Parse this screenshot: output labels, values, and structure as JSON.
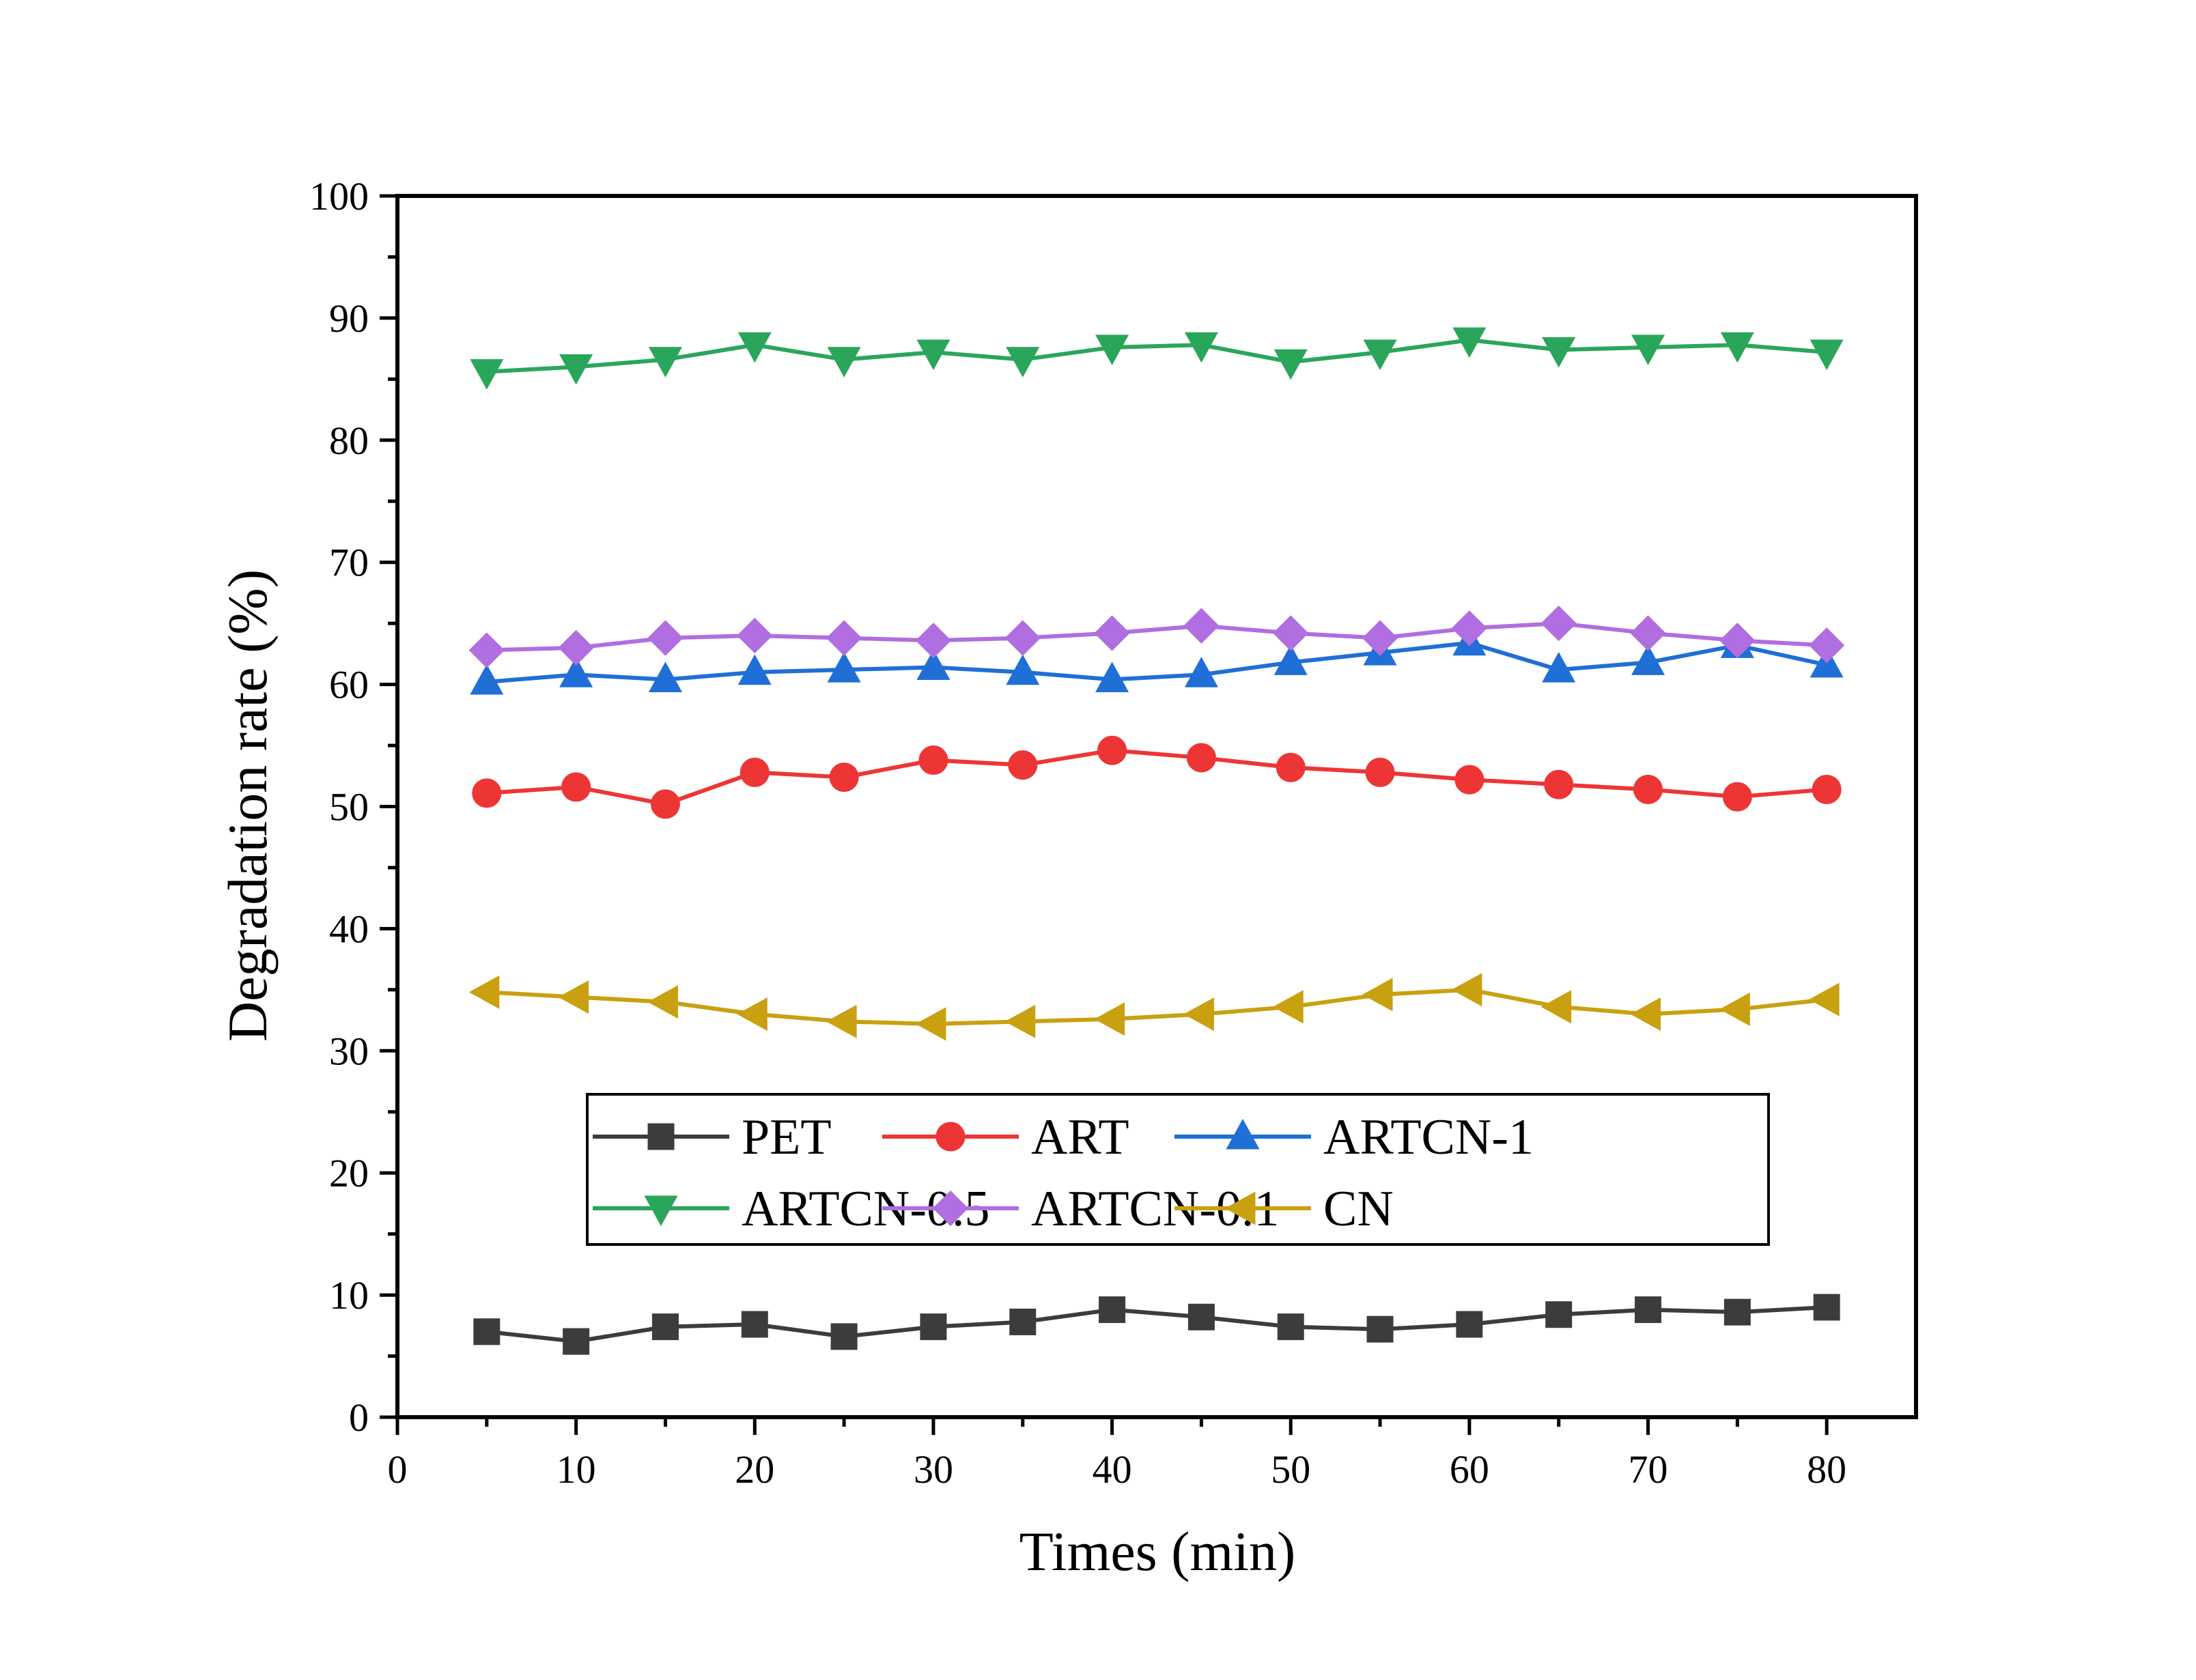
{
  "chart_data": {
    "type": "line",
    "title": "",
    "xlabel": "Times (min)",
    "ylabel": "Degradation rate (%)",
    "xlim": [
      0,
      85
    ],
    "ylim": [
      0,
      100
    ],
    "xticks": [
      0,
      10,
      20,
      30,
      40,
      50,
      60,
      70,
      80
    ],
    "yticks": [
      0,
      10,
      20,
      30,
      40,
      50,
      60,
      70,
      80,
      90,
      100
    ],
    "grid": false,
    "legend_position": "lower-middle",
    "x": [
      5,
      10,
      15,
      20,
      25,
      30,
      35,
      40,
      45,
      50,
      55,
      60,
      65,
      70,
      75,
      80
    ],
    "series": [
      {
        "name": "PET",
        "color": "#3c3c3c",
        "marker": "square",
        "values": [
          7.0,
          6.2,
          7.4,
          7.6,
          6.6,
          7.4,
          7.8,
          8.8,
          8.2,
          7.4,
          7.2,
          7.6,
          8.4,
          8.8,
          8.6,
          9.0
        ]
      },
      {
        "name": "ART",
        "color": "#ee3535",
        "marker": "circle",
        "values": [
          51.1,
          51.6,
          50.2,
          52.8,
          52.4,
          53.8,
          53.4,
          54.6,
          54.0,
          53.2,
          52.8,
          52.2,
          51.8,
          51.4,
          50.8,
          51.4
        ]
      },
      {
        "name": "ARTCN-1",
        "color": "#1f6fd6",
        "marker": "triangle-up",
        "values": [
          60.2,
          60.8,
          60.4,
          61.0,
          61.2,
          61.4,
          61.0,
          60.4,
          60.8,
          61.8,
          62.6,
          63.4,
          61.2,
          61.8,
          63.2,
          61.6
        ]
      },
      {
        "name": "ARTCN-0.5",
        "color": "#2aa65a",
        "marker": "triangle-down",
        "values": [
          85.6,
          86.0,
          86.6,
          87.8,
          86.6,
          87.2,
          86.6,
          87.6,
          87.8,
          86.4,
          87.2,
          88.2,
          87.4,
          87.6,
          87.8,
          87.2
        ]
      },
      {
        "name": "ARTCN-0.1",
        "color": "#b06ee0",
        "marker": "diamond",
        "values": [
          62.8,
          63.0,
          63.8,
          64.0,
          63.8,
          63.6,
          63.8,
          64.2,
          64.8,
          64.2,
          63.8,
          64.6,
          65.0,
          64.2,
          63.6,
          63.2
        ]
      },
      {
        "name": "CN",
        "color": "#c9a010",
        "marker": "triangle-left",
        "values": [
          34.8,
          34.4,
          34.0,
          33.0,
          32.4,
          32.2,
          32.4,
          32.6,
          33.0,
          33.6,
          34.6,
          35.0,
          33.6,
          33.0,
          33.4,
          34.2
        ]
      }
    ]
  }
}
